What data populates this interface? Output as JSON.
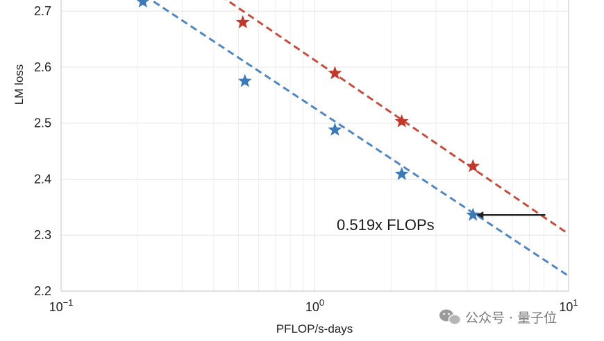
{
  "chart_data": {
    "type": "line",
    "ylabel": "LM loss",
    "xlabel": "PFLOP/s-days",
    "xscale": "log",
    "xlim": [
      0.1,
      10
    ],
    "ylim": [
      2.2,
      2.72
    ],
    "x_ticks": [
      {
        "value": 0.1,
        "base": "10",
        "exp": "−1"
      },
      {
        "value": 1,
        "base": "10",
        "exp": "0"
      },
      {
        "value": 10,
        "base": "10",
        "exp": "1"
      }
    ],
    "y_ticks": [
      {
        "value": 2.2,
        "label": "2.2"
      },
      {
        "value": 2.3,
        "label": "2.3"
      },
      {
        "value": 2.4,
        "label": "2.4"
      },
      {
        "value": 2.5,
        "label": "2.5"
      },
      {
        "value": 2.6,
        "label": "2.6"
      },
      {
        "value": 2.7,
        "label": "2.7"
      }
    ],
    "grid": true,
    "series": [
      {
        "color": "#c0392b",
        "points": [
          {
            "x": 0.52,
            "y": 2.68
          },
          {
            "x": 1.2,
            "y": 2.589
          },
          {
            "x": 2.2,
            "y": 2.503
          },
          {
            "x": 4.2,
            "y": 2.423
          }
        ],
        "fit": [
          [
            0.36,
            2.75
          ],
          [
            10,
            2.302
          ]
        ]
      },
      {
        "color": "#3e7ab8",
        "points": [
          {
            "x": 0.21,
            "y": 2.717
          },
          {
            "x": 0.53,
            "y": 2.575
          },
          {
            "x": 1.2,
            "y": 2.488
          },
          {
            "x": 2.2,
            "y": 2.409
          },
          {
            "x": 4.2,
            "y": 2.336
          }
        ],
        "fit": [
          [
            0.18,
            2.75
          ],
          [
            10,
            2.227
          ]
        ]
      }
    ],
    "annotation": {
      "text": "0.519x FLOPs",
      "arrow_from": {
        "x": 8.1,
        "y": 2.336
      },
      "arrow_to": {
        "x": 4.2,
        "y": 2.336
      }
    }
  },
  "watermark": {
    "icon": "wechat-icon",
    "text": "公众号 · 量子位"
  }
}
